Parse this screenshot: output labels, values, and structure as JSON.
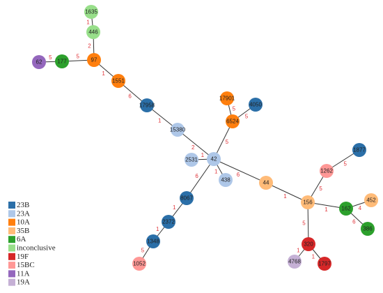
{
  "legend": [
    {
      "label": "23B",
      "color": "#2b6fa8"
    },
    {
      "label": "23A",
      "color": "#aec7e8"
    },
    {
      "label": "10A",
      "color": "#ff7f0e"
    },
    {
      "label": "35B",
      "color": "#ffbb78"
    },
    {
      "label": "6A",
      "color": "#2ca02c"
    },
    {
      "label": "inconclusive",
      "color": "#98df8a"
    },
    {
      "label": "19F",
      "color": "#d62728"
    },
    {
      "label": "15BC",
      "color": "#ff9896"
    },
    {
      "label": "11A",
      "color": "#9467bd"
    },
    {
      "label": "19A",
      "color": "#c5b0d5"
    }
  ],
  "nodes": [
    {
      "label": "1635",
      "color": "#98df8a"
    },
    {
      "label": "446",
      "color": "#98df8a"
    },
    {
      "label": "97",
      "color": "#ff7f0e"
    },
    {
      "label": "177",
      "color": "#2ca02c"
    },
    {
      "label": "62",
      "color": "#9467bd"
    },
    {
      "label": "1551",
      "color": "#ff7f0e"
    },
    {
      "label": "17958",
      "color": "#2b6fa8"
    },
    {
      "label": "15380",
      "color": "#aec7e8"
    },
    {
      "label": "17901",
      "color": "#ff7f0e"
    },
    {
      "label": "4050",
      "color": "#2b6fa8"
    },
    {
      "label": "6524",
      "color": "#ff7f0e"
    },
    {
      "label": "42",
      "color": "#aec7e8"
    },
    {
      "label": "2531",
      "color": "#aec7e8"
    },
    {
      "label": "438",
      "color": "#aec7e8"
    },
    {
      "label": "44",
      "color": "#ffbb78"
    },
    {
      "label": "8067",
      "color": "#2b6fa8"
    },
    {
      "label": "2372",
      "color": "#2b6fa8"
    },
    {
      "label": "1348",
      "color": "#2b6fa8"
    },
    {
      "label": "1052",
      "color": "#ff9896"
    },
    {
      "label": "1877",
      "color": "#2b6fa8"
    },
    {
      "label": "1262",
      "color": "#ff9896"
    },
    {
      "label": "156",
      "color": "#ffbb78"
    },
    {
      "label": "452",
      "color": "#ffbb78"
    },
    {
      "label": "162",
      "color": "#2ca02c"
    },
    {
      "label": "386",
      "color": "#2ca02c"
    },
    {
      "label": "320",
      "color": "#d62728"
    },
    {
      "label": "4768",
      "color": "#c5b0d5"
    },
    {
      "label": "1797",
      "color": "#d62728"
    }
  ],
  "edges": [
    {
      "source": "1635",
      "target": "446",
      "weight": "1"
    },
    {
      "source": "446",
      "target": "97",
      "weight": "2"
    },
    {
      "source": "97",
      "target": "177",
      "weight": "5"
    },
    {
      "source": "177",
      "target": "62",
      "weight": "5"
    },
    {
      "source": "97",
      "target": "1551",
      "weight": "1"
    },
    {
      "source": "1551",
      "target": "17958",
      "weight": "6"
    },
    {
      "source": "17958",
      "target": "15380",
      "weight": "1"
    },
    {
      "source": "15380",
      "target": "42",
      "weight": "2"
    },
    {
      "source": "42",
      "target": "2531",
      "weight": "1"
    },
    {
      "source": "42",
      "target": "6524",
      "weight": "5"
    },
    {
      "source": "6524",
      "target": "17901",
      "weight": "5"
    },
    {
      "source": "6524",
      "target": "4050",
      "weight": "5"
    },
    {
      "source": "42",
      "target": "438",
      "weight": "1"
    },
    {
      "source": "42",
      "target": "44",
      "weight": "6"
    },
    {
      "source": "42",
      "target": "8067",
      "weight": "6"
    },
    {
      "source": "8067",
      "target": "2372",
      "weight": "1"
    },
    {
      "source": "2372",
      "target": "1348",
      "weight": "1"
    },
    {
      "source": "1348",
      "target": "1052",
      "weight": "5"
    },
    {
      "source": "44",
      "target": "156",
      "weight": "1"
    },
    {
      "source": "156",
      "target": "1262",
      "weight": "5"
    },
    {
      "source": "1262",
      "target": "1877",
      "weight": "5"
    },
    {
      "source": "156",
      "target": "162",
      "weight": "1"
    },
    {
      "source": "162",
      "target": "452",
      "weight": "4"
    },
    {
      "source": "162",
      "target": "386",
      "weight": "6"
    },
    {
      "source": "156",
      "target": "320",
      "weight": "5"
    },
    {
      "source": "320",
      "target": "4768",
      "weight": "1"
    },
    {
      "source": "320",
      "target": "1797",
      "weight": "1"
    }
  ]
}
